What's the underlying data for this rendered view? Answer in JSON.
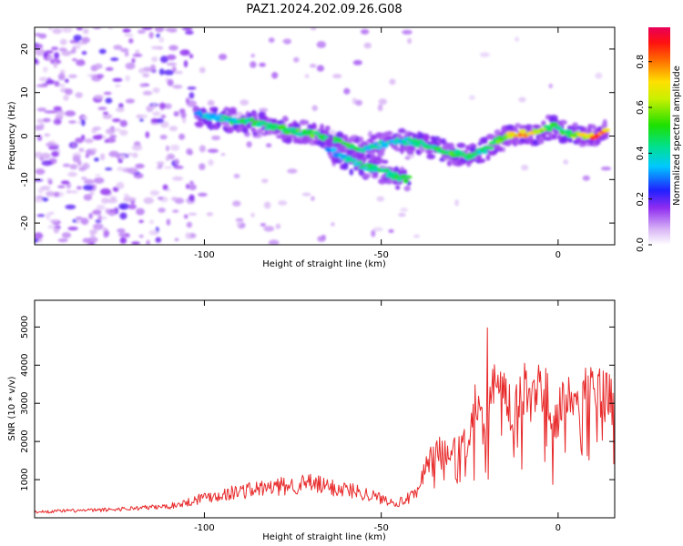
{
  "title": "PAZ1.2024.202.09.26.G08",
  "colors": {
    "snr_line": "#e8292a",
    "colormap": [
      "#ffffff",
      "#e9d6f7",
      "#cfa8f0",
      "#9a3cf0",
      "#5a00e8",
      "#1a1aff",
      "#0090ff",
      "#00e0e0",
      "#00d040",
      "#9ef000",
      "#ffe000",
      "#ff7000",
      "#ff1010",
      "#e8005a"
    ]
  },
  "chart_data": [
    {
      "type": "heatmap",
      "xlabel": "Height of straight line (km)",
      "ylabel": "Frequency (Hz)",
      "xlim": [
        -148,
        16
      ],
      "ylim": [
        -25,
        25
      ],
      "xticks": [
        -100,
        -50,
        0
      ],
      "xtick_labels": [
        "-100",
        "-50",
        "0"
      ],
      "yticks": [
        -20,
        -10,
        0,
        10,
        20
      ],
      "ytick_labels": [
        "-20",
        "-10",
        "0",
        "10",
        "20"
      ],
      "colorbar": {
        "label": "Normalized spectral amplitude",
        "range": [
          0,
          0.95
        ],
        "ticks": [
          0,
          0.2,
          0.4,
          0.6,
          0.8
        ],
        "tick_labels": [
          "0.0",
          "0.2",
          "0.4",
          "0.6",
          "0.8"
        ]
      },
      "ridge": [
        {
          "x": -102,
          "y": 5,
          "amp": 0.35
        },
        {
          "x": -95,
          "y": 4,
          "amp": 0.4
        },
        {
          "x": -90,
          "y": 3.5,
          "amp": 0.45
        },
        {
          "x": -85,
          "y": 3,
          "amp": 0.5
        },
        {
          "x": -80,
          "y": 2,
          "amp": 0.5
        },
        {
          "x": -75,
          "y": 1,
          "amp": 0.5
        },
        {
          "x": -70,
          "y": 0.5,
          "amp": 0.55
        },
        {
          "x": -65,
          "y": -0.5,
          "amp": 0.5
        },
        {
          "x": -60,
          "y": -2,
          "amp": 0.5
        },
        {
          "x": -55,
          "y": -3,
          "amp": 0.45
        },
        {
          "x": -50,
          "y": -2,
          "amp": 0.4
        },
        {
          "x": -45,
          "y": -1,
          "amp": 0.4
        },
        {
          "x": -40,
          "y": -1.5,
          "amp": 0.45
        },
        {
          "x": -35,
          "y": -3,
          "amp": 0.5
        },
        {
          "x": -30,
          "y": -4,
          "amp": 0.55
        },
        {
          "x": -25,
          "y": -4.5,
          "amp": 0.5
        },
        {
          "x": -20,
          "y": -3,
          "amp": 0.45
        },
        {
          "x": -15,
          "y": 0,
          "amp": 0.65
        },
        {
          "x": -10,
          "y": 0.5,
          "amp": 0.8
        },
        {
          "x": -5,
          "y": 1,
          "amp": 0.6
        },
        {
          "x": -1,
          "y": 2.5,
          "amp": 0.5
        },
        {
          "x": 3,
          "y": 0.5,
          "amp": 0.55
        },
        {
          "x": 8,
          "y": 0,
          "amp": 0.75
        },
        {
          "x": 10,
          "y": 0,
          "amp": 0.9
        },
        {
          "x": 14,
          "y": 1,
          "amp": 0.8
        }
      ],
      "secondary_ridge": [
        {
          "x": -65,
          "y": -3,
          "amp": 0.3
        },
        {
          "x": -60,
          "y": -5,
          "amp": 0.4
        },
        {
          "x": -55,
          "y": -7,
          "amp": 0.45
        },
        {
          "x": -50,
          "y": -8,
          "amp": 0.5
        },
        {
          "x": -45,
          "y": -9.5,
          "amp": 0.5
        },
        {
          "x": -42,
          "y": -10,
          "amp": 0.55
        }
      ]
    },
    {
      "type": "line",
      "xlabel": "Height of straight line (km)",
      "ylabel": "SNR (10 * v/v)",
      "xlim": [
        -148,
        16
      ],
      "ylim": [
        0,
        5700
      ],
      "xticks": [
        -100,
        -50,
        0
      ],
      "xtick_labels": [
        "-100",
        "-50",
        "0"
      ],
      "yticks": [
        1000,
        2000,
        3000,
        4000,
        5000
      ],
      "ytick_labels": [
        "1000",
        "2000",
        "3000",
        "4000",
        "5000"
      ],
      "series": [
        {
          "x": [
            -148,
            -140,
            -130,
            -120,
            -110,
            -105,
            -100,
            -95,
            -90,
            -85,
            -80,
            -75,
            -70,
            -65,
            -60,
            -55,
            -50,
            -45,
            -40,
            -37,
            -34,
            -31,
            -28,
            -25,
            -23,
            -21,
            -19,
            -17,
            -15,
            -13,
            -11,
            -9,
            -7,
            -5,
            -3,
            -1,
            1,
            3,
            5,
            7,
            9,
            11,
            13,
            15,
            16
          ],
          "values": [
            150,
            180,
            200,
            250,
            300,
            400,
            550,
            600,
            700,
            750,
            800,
            850,
            900,
            800,
            750,
            650,
            500,
            400,
            600,
            1500,
            1800,
            1600,
            1800,
            2000,
            3200,
            2200,
            3500,
            4200,
            3000,
            2800,
            3400,
            3300,
            3000,
            3600,
            3500,
            2400,
            3100,
            3300,
            3300,
            3400,
            3500,
            3300,
            3200,
            3500,
            3700
          ]
        }
      ]
    }
  ]
}
